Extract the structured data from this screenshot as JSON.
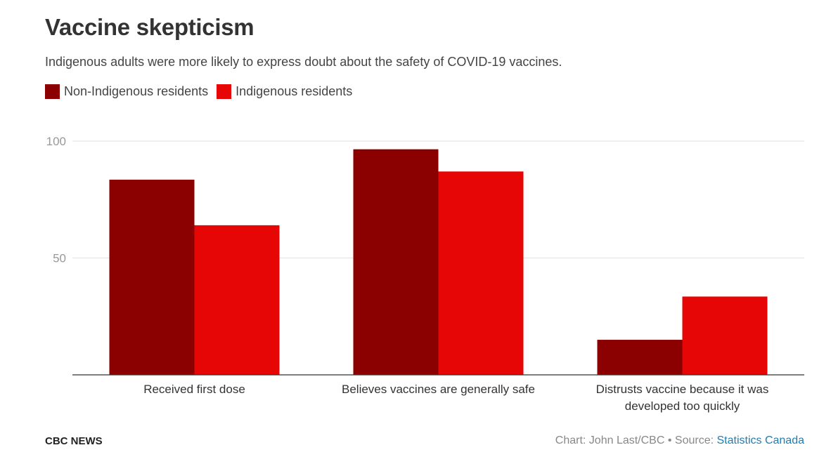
{
  "title": "Vaccine skepticism",
  "subtitle": "Indigenous adults were more likely to express doubt about the safety of COVID-19 vaccines.",
  "colors": {
    "non_indigenous": "#8b0000",
    "indigenous": "#e60606",
    "grid": "#e2e2e2",
    "axis": "#333333",
    "tick_text": "#999999"
  },
  "chart_data": {
    "type": "bar",
    "categories": [
      [
        "Received first dose"
      ],
      [
        "Believes vaccines are generally safe"
      ],
      [
        "Distrusts vaccine because it was",
        "developed too quickly"
      ]
    ],
    "series": [
      {
        "name": "Non-Indigenous residents",
        "values": [
          83.5,
          96.5,
          15
        ]
      },
      {
        "name": "Indigenous residents",
        "values": [
          64,
          87,
          33.5
        ]
      }
    ],
    "ylim": [
      0,
      100
    ],
    "yticks": [
      50,
      100
    ],
    "grid": true,
    "legend": "top-left",
    "xlabel": "",
    "ylabel": ""
  },
  "footer": {
    "brand": "CBC NEWS",
    "credit": "Chart: John Last/CBC • Source: ",
    "source": "Statistics Canada"
  }
}
